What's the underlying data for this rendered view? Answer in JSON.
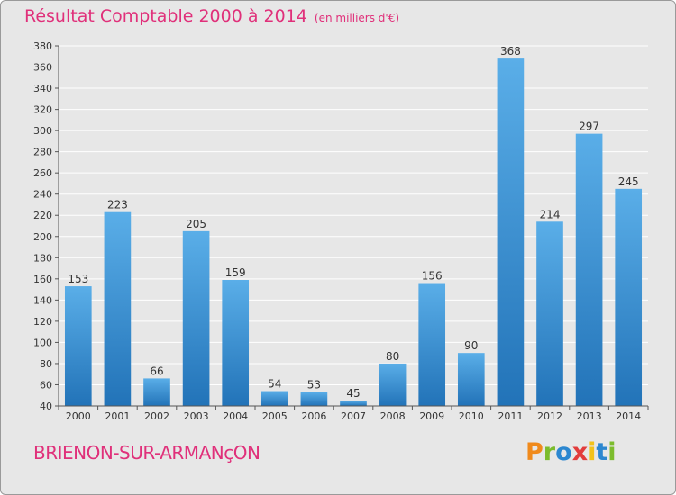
{
  "header": {
    "title": "Résultat Comptable 2000 à 2014",
    "unit": "(en milliers d'€)"
  },
  "footer": {
    "commune": "BRIENON-SUR-ARMANçON",
    "logo": "Proxiti"
  },
  "colors": {
    "title": "#e0307a",
    "bar_light": "#5aaee8",
    "bar_dark": "#2273b8",
    "background": "#e7e7e7",
    "grid": "#ffffff"
  },
  "chart_data": {
    "type": "bar",
    "title": "Résultat Comptable 2000 à 2014",
    "xlabel": "",
    "ylabel": "",
    "categories": [
      "2000",
      "2001",
      "2002",
      "2003",
      "2004",
      "2005",
      "2006",
      "2007",
      "2008",
      "2009",
      "2010",
      "2011",
      "2012",
      "2013",
      "2014"
    ],
    "values": [
      153,
      223,
      66,
      205,
      159,
      54,
      53,
      45,
      80,
      156,
      90,
      368,
      214,
      297,
      245
    ],
    "ylim": [
      40,
      380
    ],
    "yticks": [
      40,
      60,
      80,
      100,
      120,
      140,
      160,
      180,
      200,
      220,
      240,
      260,
      280,
      300,
      320,
      340,
      360,
      380
    ],
    "grid": true,
    "data_labels": true
  }
}
